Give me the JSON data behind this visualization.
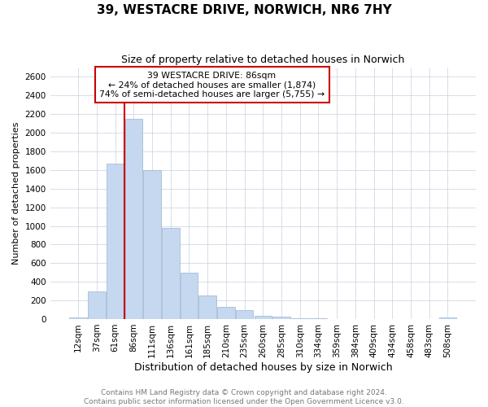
{
  "title": "39, WESTACRE DRIVE, NORWICH, NR6 7HY",
  "subtitle": "Size of property relative to detached houses in Norwich",
  "xlabel": "Distribution of detached houses by size in Norwich",
  "ylabel": "Number of detached properties",
  "bar_color": "#c5d8f0",
  "bar_edge_color": "#9ab4d0",
  "vline_color": "#cc0000",
  "annotation_text": "39 WESTACRE DRIVE: 86sqm\n← 24% of detached houses are smaller (1,874)\n74% of semi-detached houses are larger (5,755) →",
  "ylim": [
    0,
    2700
  ],
  "yticks": [
    0,
    200,
    400,
    600,
    800,
    1000,
    1200,
    1400,
    1600,
    1800,
    2000,
    2200,
    2400,
    2600
  ],
  "categories": [
    "12sqm",
    "37sqm",
    "61sqm",
    "86sqm",
    "111sqm",
    "136sqm",
    "161sqm",
    "185sqm",
    "210sqm",
    "235sqm",
    "260sqm",
    "285sqm",
    "310sqm",
    "334sqm",
    "359sqm",
    "384sqm",
    "409sqm",
    "434sqm",
    "458sqm",
    "483sqm",
    "508sqm"
  ],
  "values": [
    20,
    300,
    1670,
    2150,
    1600,
    975,
    500,
    250,
    130,
    100,
    35,
    25,
    12,
    5,
    3,
    2,
    1,
    0,
    0,
    0,
    20
  ],
  "property_bar_index": 3,
  "footer1": "Contains HM Land Registry data © Crown copyright and database right 2024.",
  "footer2": "Contains public sector information licensed under the Open Government Licence v3.0.",
  "background_color": "#ffffff",
  "grid_color": "#c8d0de",
  "title_fontsize": 11,
  "subtitle_fontsize": 9,
  "xlabel_fontsize": 9,
  "ylabel_fontsize": 8,
  "tick_fontsize": 7.5,
  "xtick_fontsize": 7.5,
  "footer_fontsize": 6.5
}
